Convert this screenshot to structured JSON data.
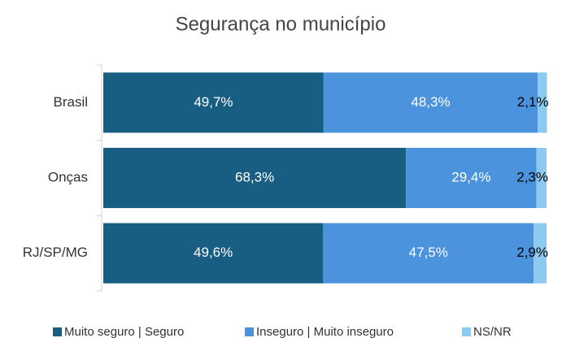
{
  "chart_data": {
    "type": "stacked_barh",
    "title": "Segurança no município",
    "categories": [
      "Brasil",
      "Onças",
      "RJ/SP/MG"
    ],
    "series": [
      {
        "name": "Muito seguro | Seguro",
        "color": "#175e82",
        "values": [
          49.7,
          68.3,
          49.6
        ],
        "value_labels": [
          "49,7%",
          "68,3%",
          "49,6%"
        ]
      },
      {
        "name": "Inseguro | Muito inseguro",
        "color": "#4b93dc",
        "values": [
          48.3,
          29.4,
          47.5
        ],
        "value_labels": [
          "48,3%",
          "29,4%",
          "47,5%"
        ]
      },
      {
        "name": "NS/NR",
        "color": "#8ccbef",
        "values": [
          2.1,
          2.3,
          2.9
        ],
        "value_labels": [
          "2,1%",
          "2,3%",
          "2,9%"
        ]
      }
    ],
    "xlim": [
      0,
      100
    ],
    "legend": "bottom"
  }
}
